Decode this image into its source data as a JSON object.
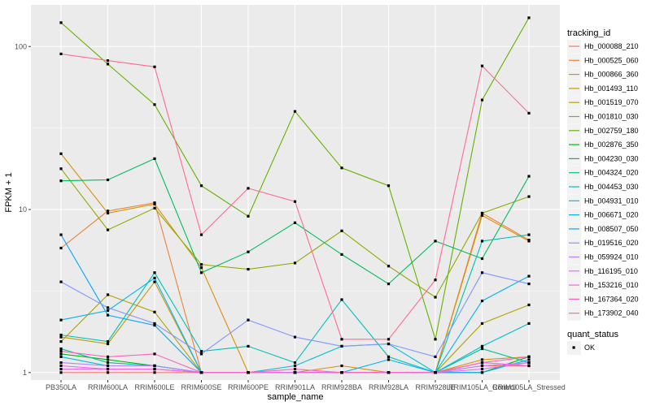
{
  "chart_data": {
    "type": "line",
    "title": "",
    "xlabel": "sample_name",
    "ylabel": "FPKM + 1",
    "yscale": "log10",
    "ylim": [
      0.9,
      180
    ],
    "yticks": [
      1,
      10,
      100
    ],
    "ytick_labels": [
      "1",
      "10",
      "100"
    ],
    "grid": true,
    "legend_position": "right",
    "categories": [
      "PB350LA",
      "RRIM600LA",
      "RRIM600LE",
      "RRIM600SE",
      "RRIM600PE",
      "RRIM901LA",
      "RRIM928BA",
      "RRIM928LA",
      "RRIM928LE",
      "RRIM105LA_Control",
      "RRIM105LA_Stressed"
    ],
    "tick_labels": [
      "PB350LA",
      "RRIM600LA",
      "RRIM600LE",
      "RRIM600SE",
      "RRIM600PE",
      "RRIM901LA",
      "RRIM928BA",
      "RRIM928LA",
      "RRIM928LE",
      "RRIM105LA_Control",
      "RRIM105LA_Stressed"
    ],
    "legend_title": "tracking_id",
    "shape_legend": {
      "title": "quant_status",
      "items": [
        "OK"
      ]
    },
    "series": [
      {
        "name": "Hb_000088_210",
        "color": "#F8766D",
        "values": [
          1.0,
          1.0,
          1.0,
          1.0,
          1.0,
          1.0,
          1.0,
          1.0,
          1.0,
          1.1,
          1.1
        ]
      },
      {
        "name": "Hb_000525_060",
        "color": "#EC8239",
        "values": [
          5.8,
          9.8,
          11.0,
          1.0,
          1.0,
          1.0,
          1.0,
          1.0,
          1.0,
          9.5,
          6.5
        ]
      },
      {
        "name": "Hb_000866_360",
        "color": "#DB8E00",
        "values": [
          22.0,
          9.5,
          10.8,
          4.4,
          1.0,
          1.0,
          1.1,
          1.0,
          1.0,
          9.2,
          6.4
        ]
      },
      {
        "name": "Hb_001493_110",
        "color": "#C79800",
        "values": [
          1.65,
          1.5,
          3.6,
          1.0,
          1.0,
          1.0,
          1.0,
          1.0,
          1.0,
          1.2,
          1.25
        ]
      },
      {
        "name": "Hb_001519_070",
        "color": "#AEA200",
        "values": [
          1.55,
          3.0,
          2.35,
          1.0,
          1.0,
          1.0,
          1.0,
          1.0,
          1.0,
          2.0,
          2.6
        ]
      },
      {
        "name": "Hb_001810_030",
        "color": "#8FAA00",
        "values": [
          17.8,
          7.5,
          10.2,
          4.6,
          4.3,
          4.7,
          7.4,
          4.5,
          2.9,
          9.5,
          12.0
        ]
      },
      {
        "name": "Hb_002759_180",
        "color": "#64B200",
        "values": [
          140,
          78,
          44,
          14,
          9.1,
          40,
          18,
          14,
          1.6,
          47,
          150
        ]
      },
      {
        "name": "Hb_002876_350",
        "color": "#00B81B",
        "values": [
          1.3,
          1.2,
          1.1,
          1.0,
          1.0,
          1.0,
          1.0,
          1.0,
          1.0,
          1.0,
          1.25
        ]
      },
      {
        "name": "Hb_004230_030",
        "color": "#00BD5C",
        "values": [
          15.0,
          15.2,
          20.5,
          4.1,
          5.5,
          8.3,
          5.3,
          3.5,
          6.4,
          5.0,
          16.0
        ]
      },
      {
        "name": "Hb_004324_020",
        "color": "#00C08E",
        "values": [
          1.4,
          1.15,
          1.1,
          1.0,
          1.0,
          1.0,
          1.0,
          1.0,
          1.0,
          1.4,
          1.15
        ]
      },
      {
        "name": "Hb_004453_030",
        "color": "#00C1B7",
        "values": [
          1.7,
          1.55,
          4.1,
          1.35,
          1.45,
          1.15,
          2.8,
          1.25,
          1.0,
          6.4,
          7.0
        ]
      },
      {
        "name": "Hb_004931_010",
        "color": "#00BDD4",
        "values": [
          1.25,
          1.1,
          1.1,
          1.0,
          1.0,
          1.1,
          1.45,
          1.5,
          1.0,
          1.45,
          2.0
        ]
      },
      {
        "name": "Hb_006671_020",
        "color": "#00B5EE",
        "values": [
          2.1,
          2.4,
          3.8,
          1.0,
          1.0,
          1.0,
          1.0,
          1.2,
          1.0,
          2.75,
          3.9
        ]
      },
      {
        "name": "Hb_008507_050",
        "color": "#00A7FF",
        "values": [
          7.0,
          2.25,
          1.95,
          1.0,
          1.0,
          1.0,
          1.0,
          1.0,
          1.0,
          1.0,
          1.2
        ]
      },
      {
        "name": "Hb_019516_020",
        "color": "#7F96FF",
        "values": [
          3.6,
          2.5,
          2.0,
          1.3,
          2.1,
          1.65,
          1.45,
          1.5,
          1.25,
          4.1,
          3.5
        ]
      },
      {
        "name": "Hb_059924_010",
        "color": "#BC81FF",
        "values": [
          1.15,
          1.1,
          1.1,
          1.0,
          1.0,
          1.0,
          1.0,
          1.0,
          1.0,
          1.1,
          1.15
        ]
      },
      {
        "name": "Hb_116195_010",
        "color": "#E26EF7",
        "values": [
          1.05,
          1.05,
          1.05,
          1.0,
          1.0,
          1.0,
          1.0,
          1.0,
          1.0,
          1.05,
          1.15
        ]
      },
      {
        "name": "Hb_153216_010",
        "color": "#F863DF",
        "values": [
          1.1,
          1.05,
          1.05,
          1.0,
          1.0,
          1.0,
          1.0,
          1.0,
          1.0,
          1.15,
          1.1
        ]
      },
      {
        "name": "Hb_167364_020",
        "color": "#FF62BC",
        "values": [
          1.35,
          1.25,
          1.3,
          1.0,
          1.0,
          1.05,
          1.0,
          1.0,
          1.0,
          1.15,
          1.25
        ]
      },
      {
        "name": "Hb_173902_040",
        "color": "#FF6C91",
        "values": [
          90,
          82,
          75,
          7.0,
          13.5,
          11.2,
          1.6,
          1.6,
          3.7,
          76,
          39
        ]
      }
    ]
  }
}
